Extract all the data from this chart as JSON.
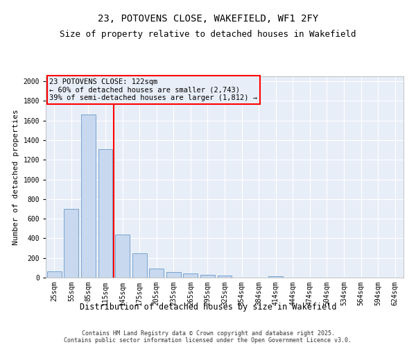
{
  "title": "23, POTOVENS CLOSE, WAKEFIELD, WF1 2FY",
  "subtitle": "Size of property relative to detached houses in Wakefield",
  "xlabel": "Distribution of detached houses by size in Wakefield",
  "ylabel": "Number of detached properties",
  "categories": [
    "25sqm",
    "55sqm",
    "85sqm",
    "115sqm",
    "145sqm",
    "175sqm",
    "205sqm",
    "235sqm",
    "265sqm",
    "295sqm",
    "325sqm",
    "354sqm",
    "384sqm",
    "414sqm",
    "444sqm",
    "474sqm",
    "504sqm",
    "534sqm",
    "564sqm",
    "594sqm",
    "624sqm"
  ],
  "values": [
    65,
    700,
    1660,
    1310,
    440,
    250,
    90,
    55,
    40,
    25,
    20,
    0,
    0,
    15,
    0,
    0,
    0,
    0,
    0,
    0,
    0
  ],
  "bar_color": "#c8d8ee",
  "bar_edge_color": "#6699cc",
  "vline_color": "red",
  "vline_pos": 3.5,
  "annotation_text": "23 POTOVENS CLOSE: 122sqm\n← 60% of detached houses are smaller (2,743)\n39% of semi-detached houses are larger (1,812) →",
  "annotation_box_color": "red",
  "ylim": [
    0,
    2050
  ],
  "yticks": [
    0,
    200,
    400,
    600,
    800,
    1000,
    1200,
    1400,
    1600,
    1800,
    2000
  ],
  "fig_background": "#ffffff",
  "plot_background": "#e8eef8",
  "grid_color": "#ffffff",
  "footer": "Contains HM Land Registry data © Crown copyright and database right 2025.\nContains public sector information licensed under the Open Government Licence v3.0.",
  "title_fontsize": 10,
  "subtitle_fontsize": 9,
  "xlabel_fontsize": 8.5,
  "ylabel_fontsize": 8,
  "tick_fontsize": 7,
  "annotation_fontsize": 7.5,
  "footer_fontsize": 6
}
